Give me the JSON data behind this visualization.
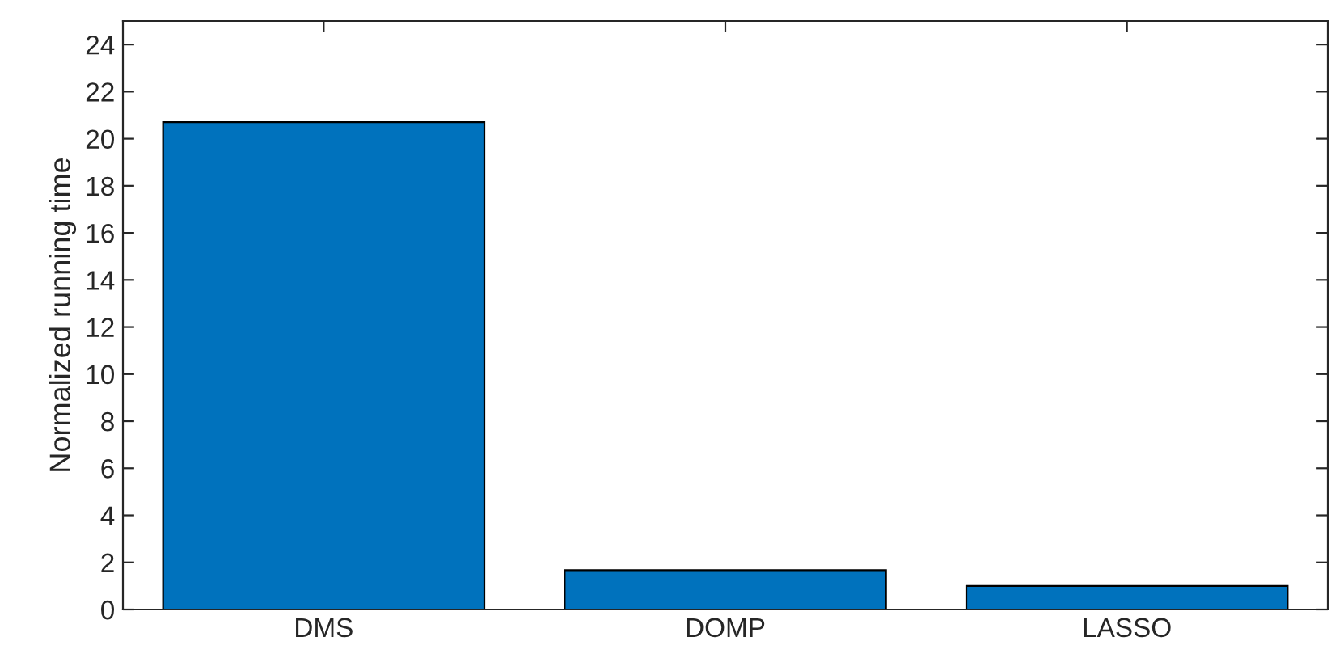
{
  "chart_data": {
    "type": "bar",
    "ylabel": "Normalized running time",
    "categories": [
      "DMS",
      "DOMP",
      "LASSO"
    ],
    "values": [
      20.7,
      1.67,
      1.0
    ],
    "color": "#0072bd",
    "ylim": [
      0,
      25
    ],
    "yticks": [
      0,
      2,
      4,
      6,
      8,
      10,
      12,
      14,
      16,
      18,
      20,
      22,
      24
    ],
    "grid": false
  }
}
